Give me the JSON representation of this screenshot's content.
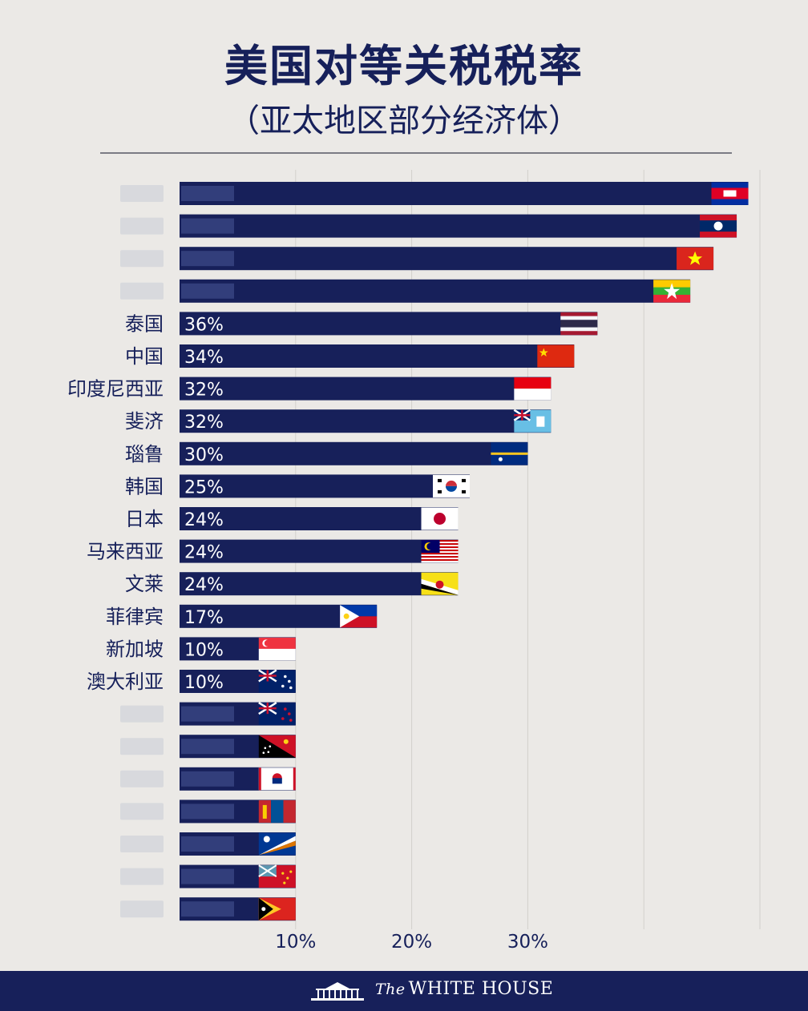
{
  "title": "美国对等关税税率",
  "subtitle": "（亚太地区部分经济体）",
  "footer": {
    "the": "The",
    "name": "WHITE HOUSE"
  },
  "chart_data": {
    "type": "bar",
    "orientation": "horizontal",
    "title": "美国对等关税税率",
    "subtitle": "（亚太地区部分经济体）",
    "xlim": [
      0,
      50
    ],
    "xticks": [
      10,
      20,
      30
    ],
    "xtick_labels": [
      "10%",
      "20%",
      "30%"
    ],
    "grid": true,
    "bar_color": "#17205a",
    "bars": [
      {
        "label": "",
        "value": 49,
        "value_label": "",
        "flag": "cambodia-flag",
        "illegible": true
      },
      {
        "label": "",
        "value": 48,
        "value_label": "",
        "flag": "laos-flag",
        "illegible": true
      },
      {
        "label": "",
        "value": 46,
        "value_label": "",
        "flag": "vietnam-flag",
        "illegible": true
      },
      {
        "label": "",
        "value": 44,
        "value_label": "",
        "flag": "myanmar-flag",
        "illegible": true
      },
      {
        "label": "泰国",
        "value": 36,
        "value_label": "36%",
        "flag": "thailand-flag"
      },
      {
        "label": "中国",
        "value": 34,
        "value_label": "34%",
        "flag": "china-flag"
      },
      {
        "label": "印度尼西亚",
        "value": 32,
        "value_label": "32%",
        "flag": "indonesia-flag"
      },
      {
        "label": "斐济",
        "value": 32,
        "value_label": "32%",
        "flag": "fiji-flag"
      },
      {
        "label": "瑙鲁",
        "value": 30,
        "value_label": "30%",
        "flag": "nauru-flag"
      },
      {
        "label": "韩国",
        "value": 25,
        "value_label": "25%",
        "flag": "south-korea-flag"
      },
      {
        "label": "日本",
        "value": 24,
        "value_label": "24%",
        "flag": "japan-flag"
      },
      {
        "label": "马来西亚",
        "value": 24,
        "value_label": "24%",
        "flag": "malaysia-flag"
      },
      {
        "label": "文莱",
        "value": 24,
        "value_label": "24%",
        "flag": "brunei-flag"
      },
      {
        "label": "菲律宾",
        "value": 17,
        "value_label": "17%",
        "flag": "philippines-flag"
      },
      {
        "label": "新加坡",
        "value": 10,
        "value_label": "10%",
        "flag": "singapore-flag"
      },
      {
        "label": "澳大利亚",
        "value": 10,
        "value_label": "10%",
        "flag": "australia-flag"
      },
      {
        "label": "",
        "value": 10,
        "value_label": "",
        "flag": "new-zealand-flag",
        "illegible": true
      },
      {
        "label": "",
        "value": 10,
        "value_label": "",
        "flag": "papua-new-guinea-flag",
        "illegible": true
      },
      {
        "label": "",
        "value": 10,
        "value_label": "",
        "flag": "samoa-flag",
        "illegible": true
      },
      {
        "label": "",
        "value": 10,
        "value_label": "",
        "flag": "mongolia-flag",
        "illegible": true
      },
      {
        "label": "",
        "value": 10,
        "value_label": "",
        "flag": "marshall-islands-flag",
        "illegible": true
      },
      {
        "label": "",
        "value": 10,
        "value_label": "",
        "flag": "tuvalu-flag",
        "illegible": true
      },
      {
        "label": "",
        "value": 10,
        "value_label": "",
        "flag": "timor-leste-flag",
        "illegible": true
      }
    ]
  }
}
